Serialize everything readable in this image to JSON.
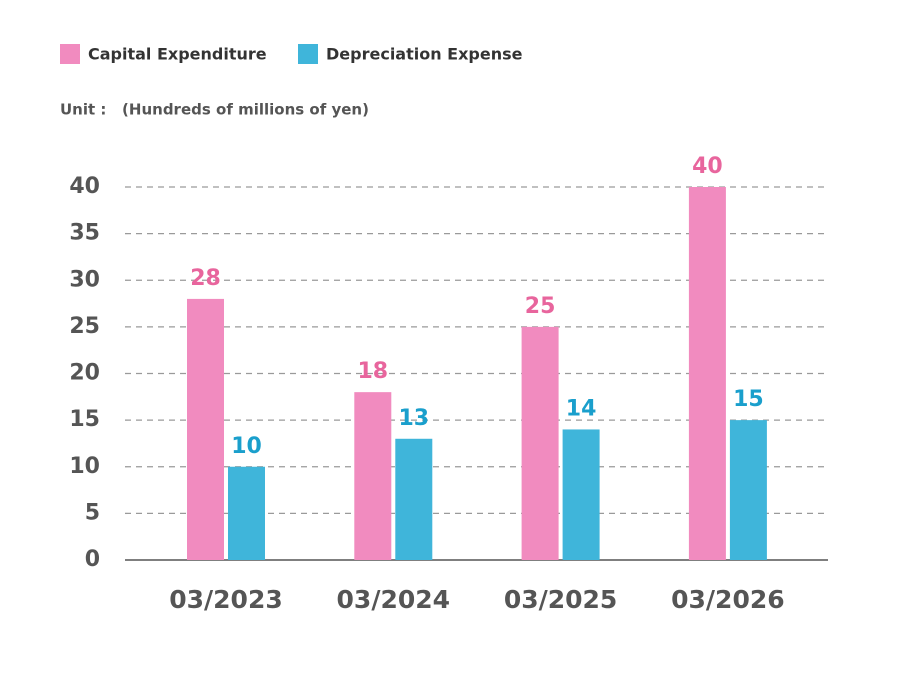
{
  "chart_data": {
    "type": "bar",
    "unit_label": "Unit :   (Hundreds of millions of yen)",
    "categories": [
      "03/2023",
      "03/2024",
      "03/2025",
      "03/2026"
    ],
    "series": [
      {
        "name": "Capital Expenditure",
        "color": "#f18bbf",
        "label_color": "#e8659d",
        "values": [
          28,
          18,
          25,
          40
        ]
      },
      {
        "name": "Depreciation Expense",
        "color": "#3fb5da",
        "label_color": "#1a9fcc",
        "values": [
          10,
          13,
          14,
          15
        ]
      }
    ],
    "ylim": [
      0,
      40
    ],
    "yticks": [
      0,
      5,
      10,
      15,
      20,
      25,
      30,
      35,
      40
    ],
    "grid": true,
    "legend": "top-left"
  }
}
